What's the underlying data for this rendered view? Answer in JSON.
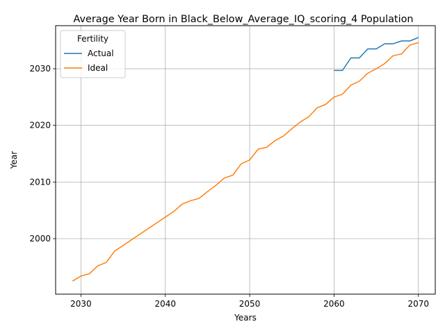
{
  "chart_data": {
    "type": "line",
    "title": "Average Year Born in Black_Below_Average_IQ_scoring_4 Population",
    "xlabel": "Years",
    "ylabel": "Year",
    "xlim": [
      2027,
      2072
    ],
    "ylim": [
      1990.2,
      2037.6
    ],
    "xticks": [
      2030,
      2040,
      2050,
      2060,
      2070
    ],
    "yticks": [
      2000,
      2010,
      2020,
      2030
    ],
    "grid": true,
    "legend": {
      "title": "Fertility",
      "position": "upper-left"
    },
    "series": [
      {
        "name": "Actual",
        "color": "#1f77b4",
        "x": [
          2060,
          2061,
          2062,
          2063,
          2064,
          2065,
          2066,
          2067,
          2068,
          2069,
          2070
        ],
        "y": [
          2029.7,
          2029.7,
          2031.9,
          2031.9,
          2033.5,
          2033.5,
          2034.4,
          2034.4,
          2034.9,
          2034.9,
          2035.5
        ]
      },
      {
        "name": "Ideal",
        "color": "#ff7f0e",
        "x": [
          2029,
          2030,
          2031,
          2032,
          2033,
          2034,
          2035,
          2036,
          2037,
          2038,
          2039,
          2040,
          2041,
          2042,
          2043,
          2044,
          2045,
          2046,
          2047,
          2048,
          2049,
          2050,
          2051,
          2052,
          2053,
          2054,
          2055,
          2056,
          2057,
          2058,
          2059,
          2060,
          2061,
          2062,
          2063,
          2064,
          2065,
          2066,
          2067,
          2068,
          2069,
          2070
        ],
        "y": [
          1992.5,
          1993.4,
          1993.8,
          1995.2,
          1995.8,
          1997.8,
          1998.8,
          1999.8,
          2000.8,
          2001.8,
          2002.8,
          2003.8,
          2004.8,
          2006.1,
          2006.7,
          2007.1,
          2008.3,
          2009.4,
          2010.7,
          2011.2,
          2013.2,
          2013.9,
          2015.8,
          2016.1,
          2017.3,
          2018.1,
          2019.4,
          2020.6,
          2021.5,
          2023.1,
          2023.7,
          2025.0,
          2025.5,
          2027.1,
          2027.8,
          2029.2,
          2030.0,
          2030.9,
          2032.3,
          2032.6,
          2034.2,
          2034.6
        ]
      }
    ]
  }
}
